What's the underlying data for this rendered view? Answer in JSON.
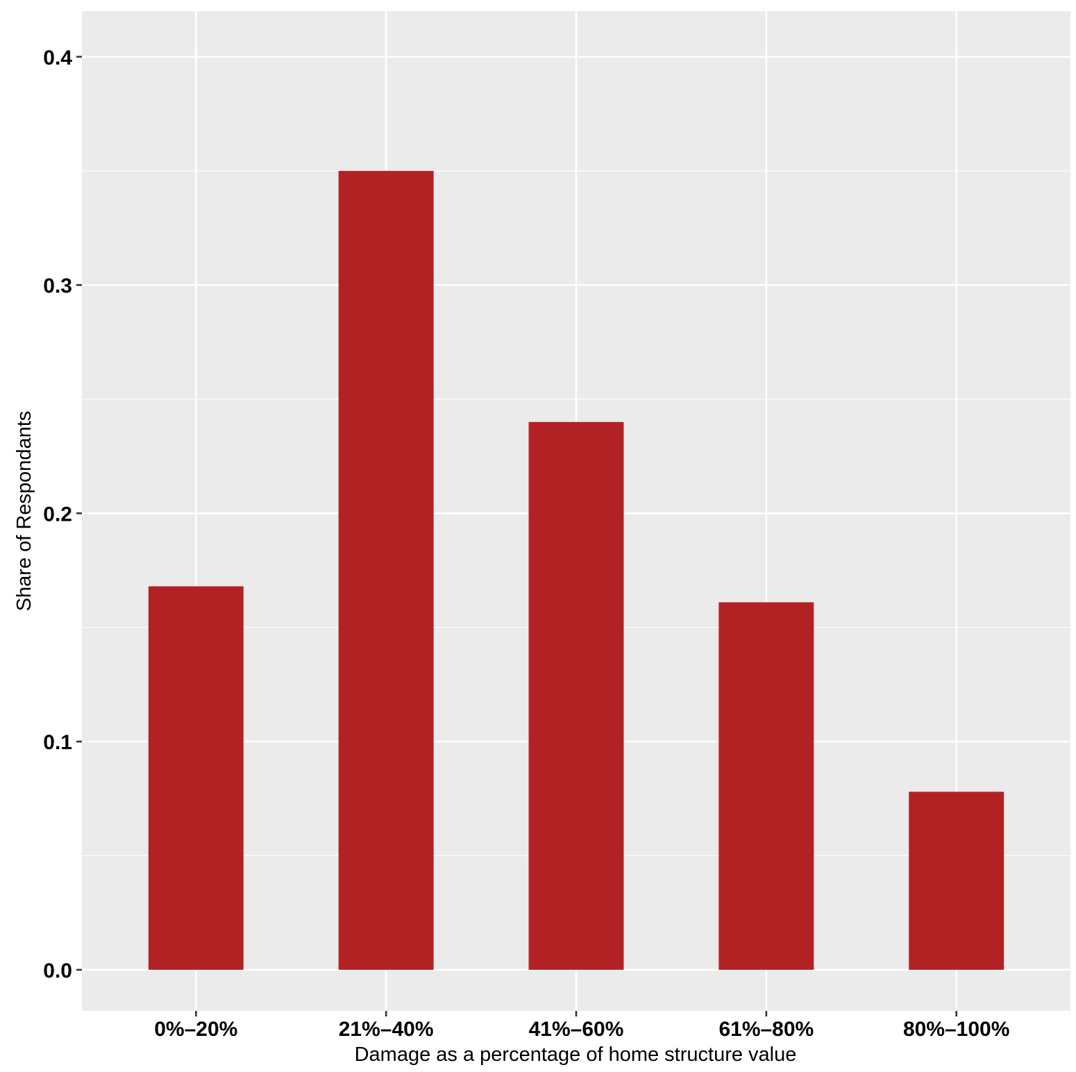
{
  "chart_data": {
    "type": "bar",
    "title": "",
    "xlabel": "Damage as a percentage of home structure value",
    "ylabel": "Share of Respondants",
    "categories": [
      "0%–20%",
      "21%–40%",
      "41%–60%",
      "61%–80%",
      "80%–100%"
    ],
    "values": [
      0.168,
      0.35,
      0.24,
      0.161,
      0.078
    ],
    "ylim": [
      -0.018,
      0.42
    ],
    "yticks": [
      0.0,
      0.1,
      0.2,
      0.3,
      0.4
    ],
    "ytick_labels": [
      "0.0",
      "0.1",
      "0.2",
      "0.3",
      "0.4"
    ],
    "grid": true,
    "legend": "none",
    "colors": {
      "bar": "#b22224",
      "panel_background": "#ebebeb",
      "grid": "#ffffff",
      "tick": "#333333"
    }
  }
}
